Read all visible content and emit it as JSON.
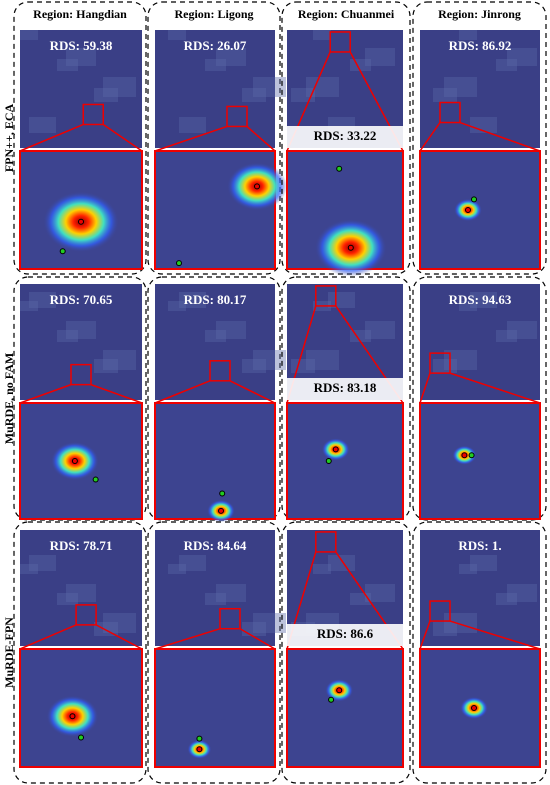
{
  "columns": [
    {
      "title": "Region: Hangdian"
    },
    {
      "title": "Region: Ligong"
    },
    {
      "title": "Region: Chuanmei"
    },
    {
      "title": "Region: Jinrong"
    }
  ],
  "rows": [
    {
      "label": "FPN++, ECA",
      "cells": [
        {
          "rds": "RDS: 59.38"
        },
        {
          "rds": "RDS: 26.07"
        },
        {
          "rds": "RDS: 33.22"
        },
        {
          "rds": "RDS: 86.92"
        }
      ]
    },
    {
      "label": "MuRDE, no FAM",
      "cells": [
        {
          "rds": "RDS: 70.65"
        },
        {
          "rds": "RDS: 80.17"
        },
        {
          "rds": "RDS: 83.18"
        },
        {
          "rds": "RDS: 94.63"
        }
      ]
    },
    {
      "label": "MuRDE-FPN",
      "cells": [
        {
          "rds": "RDS: 78.71"
        },
        {
          "rds": "RDS: 84.64"
        },
        {
          "rds": "RDS: 86.6"
        },
        {
          "rds": "RDS: 1."
        }
      ]
    }
  ]
}
